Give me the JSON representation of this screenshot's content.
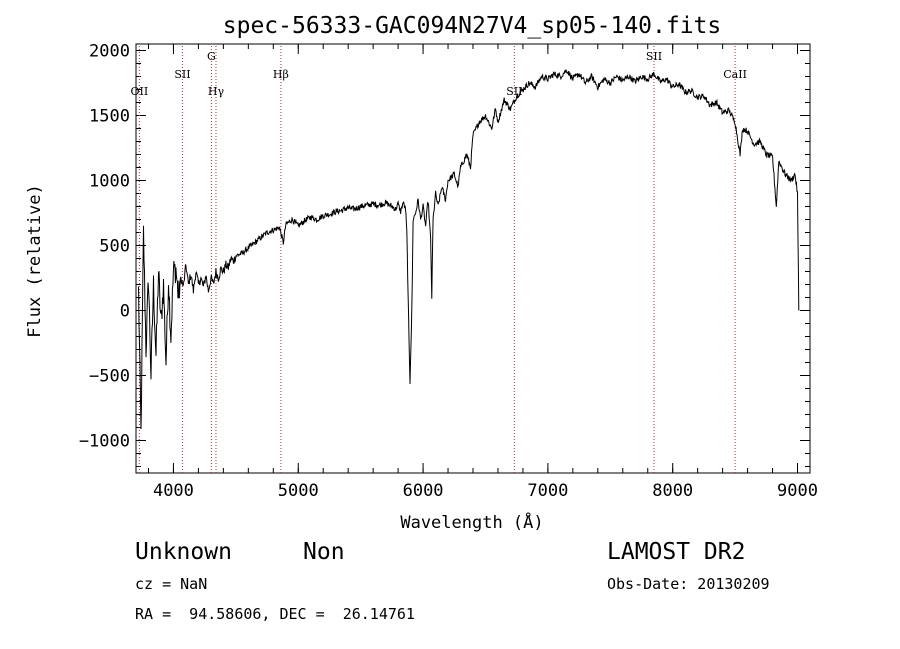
{
  "chart_data": {
    "type": "line",
    "title": "spec-56333-GAC094N27V4_sp05-140.fits",
    "xlabel": "Wavelength (Å)",
    "ylabel": "Flux (relative)",
    "xlim": [
      3700,
      9100
    ],
    "ylim": [
      -1250,
      2050
    ],
    "xticks": [
      4000,
      5000,
      6000,
      7000,
      8000,
      9000
    ],
    "yticks": [
      -1000,
      -500,
      0,
      500,
      1000,
      1500,
      2000
    ],
    "x_minor_step": 200,
    "y_minor_step": 100,
    "grid": false,
    "series": [
      {
        "color": "#000000",
        "points": [
          [
            3720,
            150
          ],
          [
            3740,
            -950
          ],
          [
            3760,
            600
          ],
          [
            3780,
            -300
          ],
          [
            3800,
            250
          ],
          [
            3820,
            -500
          ],
          [
            3840,
            200
          ],
          [
            3860,
            -350
          ],
          [
            3880,
            300
          ],
          [
            3900,
            -100
          ],
          [
            3920,
            200
          ],
          [
            3940,
            -400
          ],
          [
            3960,
            250
          ],
          [
            3980,
            -200
          ],
          [
            4000,
            300
          ],
          [
            4020,
            320
          ],
          [
            4040,
            100
          ],
          [
            4060,
            250
          ],
          [
            4080,
            180
          ],
          [
            4100,
            350
          ],
          [
            4120,
            200
          ],
          [
            4140,
            280
          ],
          [
            4160,
            150
          ],
          [
            4180,
            300
          ],
          [
            4200,
            200
          ],
          [
            4220,
            250
          ],
          [
            4240,
            180
          ],
          [
            4260,
            270
          ],
          [
            4280,
            150
          ],
          [
            4300,
            250
          ],
          [
            4320,
            200
          ],
          [
            4340,
            300
          ],
          [
            4360,
            250
          ],
          [
            4380,
            320
          ],
          [
            4400,
            300
          ],
          [
            4420,
            350
          ],
          [
            4440,
            330
          ],
          [
            4460,
            400
          ],
          [
            4480,
            380
          ],
          [
            4500,
            420
          ],
          [
            4550,
            440
          ],
          [
            4600,
            480
          ],
          [
            4650,
            520
          ],
          [
            4700,
            560
          ],
          [
            4750,
            600
          ],
          [
            4800,
            620
          ],
          [
            4850,
            640
          ],
          [
            4880,
            520
          ],
          [
            4900,
            660
          ],
          [
            4950,
            700
          ],
          [
            5000,
            650
          ],
          [
            5050,
            690
          ],
          [
            5100,
            720
          ],
          [
            5150,
            700
          ],
          [
            5200,
            730
          ],
          [
            5250,
            740
          ],
          [
            5300,
            760
          ],
          [
            5350,
            770
          ],
          [
            5400,
            790
          ],
          [
            5450,
            780
          ],
          [
            5500,
            800
          ],
          [
            5550,
            810
          ],
          [
            5600,
            820
          ],
          [
            5650,
            810
          ],
          [
            5700,
            830
          ],
          [
            5750,
            800
          ],
          [
            5780,
            780
          ],
          [
            5800,
            820
          ],
          [
            5820,
            760
          ],
          [
            5840,
            830
          ],
          [
            5860,
            780
          ],
          [
            5870,
            600
          ],
          [
            5880,
            100
          ],
          [
            5895,
            -550
          ],
          [
            5910,
            0
          ],
          [
            5920,
            700
          ],
          [
            5940,
            750
          ],
          [
            5960,
            850
          ],
          [
            5980,
            700
          ],
          [
            6000,
            800
          ],
          [
            6020,
            650
          ],
          [
            6040,
            850
          ],
          [
            6060,
            550
          ],
          [
            6070,
            100
          ],
          [
            6080,
            700
          ],
          [
            6100,
            900
          ],
          [
            6120,
            800
          ],
          [
            6150,
            950
          ],
          [
            6180,
            850
          ],
          [
            6200,
            1000
          ],
          [
            6250,
            1050
          ],
          [
            6280,
            950
          ],
          [
            6300,
            1100
          ],
          [
            6350,
            1200
          ],
          [
            6380,
            1100
          ],
          [
            6400,
            1350
          ],
          [
            6450,
            1450
          ],
          [
            6500,
            1500
          ],
          [
            6550,
            1400
          ],
          [
            6580,
            1550
          ],
          [
            6600,
            1450
          ],
          [
            6650,
            1620
          ],
          [
            6700,
            1550
          ],
          [
            6750,
            1650
          ],
          [
            6800,
            1700
          ],
          [
            6850,
            1750
          ],
          [
            6900,
            1720
          ],
          [
            6950,
            1800
          ],
          [
            7000,
            1780
          ],
          [
            7050,
            1820
          ],
          [
            7100,
            1800
          ],
          [
            7150,
            1850
          ],
          [
            7200,
            1780
          ],
          [
            7250,
            1820
          ],
          [
            7300,
            1750
          ],
          [
            7350,
            1800
          ],
          [
            7400,
            1720
          ],
          [
            7450,
            1780
          ],
          [
            7500,
            1750
          ],
          [
            7550,
            1800
          ],
          [
            7600,
            1770
          ],
          [
            7650,
            1800
          ],
          [
            7700,
            1760
          ],
          [
            7750,
            1800
          ],
          [
            7800,
            1780
          ],
          [
            7850,
            1820
          ],
          [
            7900,
            1760
          ],
          [
            7950,
            1780
          ],
          [
            8000,
            1720
          ],
          [
            8050,
            1740
          ],
          [
            8100,
            1680
          ],
          [
            8150,
            1690
          ],
          [
            8200,
            1640
          ],
          [
            8250,
            1650
          ],
          [
            8300,
            1580
          ],
          [
            8350,
            1600
          ],
          [
            8400,
            1520
          ],
          [
            8450,
            1540
          ],
          [
            8500,
            1450
          ],
          [
            8540,
            1200
          ],
          [
            8560,
            1400
          ],
          [
            8600,
            1380
          ],
          [
            8650,
            1280
          ],
          [
            8700,
            1300
          ],
          [
            8750,
            1200
          ],
          [
            8800,
            1180
          ],
          [
            8830,
            800
          ],
          [
            8850,
            1150
          ],
          [
            8900,
            1050
          ],
          [
            8950,
            1000
          ],
          [
            8980,
            1050
          ],
          [
            9000,
            900
          ],
          [
            9010,
            0
          ]
        ]
      }
    ],
    "lines": [
      {
        "x": 3727,
        "label": "OII",
        "level": 3
      },
      {
        "x": 4072,
        "label": "SII",
        "level": 2
      },
      {
        "x": 4304,
        "label": "G",
        "level": 1
      },
      {
        "x": 4341,
        "label": "Hγ",
        "level": 3
      },
      {
        "x": 4861,
        "label": "Hβ",
        "level": 2
      },
      {
        "x": 6731,
        "label": "SII",
        "level": 3
      },
      {
        "x": 7850,
        "label": "SII",
        "level": 1
      },
      {
        "x": 8500,
        "label": "CaII",
        "level": 2
      }
    ]
  },
  "info": {
    "class": "Unknown",
    "subclass": "Non",
    "survey": "LAMOST DR2",
    "cz": "cz = NaN",
    "obs_date": "Obs-Date: 20130209",
    "coords": "RA =  94.58606, DEC =  26.14761"
  }
}
